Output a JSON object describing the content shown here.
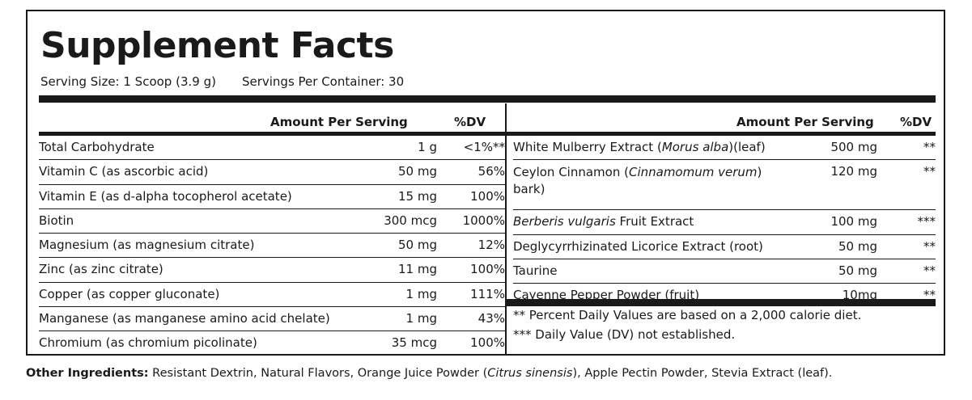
{
  "title": "Supplement Facts",
  "serving_size": "Serving Size: 1 Scoop (3.9 g)",
  "servings_per_container": "Servings Per Container: 30",
  "left_table": {
    "header_amount": "Amount Per Serving",
    "header_dv": "%DV",
    "rows": [
      {
        "name": "Total Carbohydrate",
        "amount": "1 g",
        "dv": "<1%**"
      },
      {
        "name": "Vitamin C (as ascorbic acid)",
        "amount": "50 mg",
        "dv": "56%"
      },
      {
        "name": "Vitamin E (as d-alpha tocopherol acetate)",
        "amount": "15 mg",
        "dv": "100%"
      },
      {
        "name": "Biotin",
        "amount": "300 mcg",
        "dv": "1000%"
      },
      {
        "name": "Magnesium (as magnesium citrate)",
        "amount": "50 mg",
        "dv": "12%"
      },
      {
        "name": "Zinc (as zinc citrate)",
        "amount": "11 mg",
        "dv": "100%"
      },
      {
        "name": "Copper (as copper gluconate)",
        "amount": "1 mg",
        "dv": "111%"
      },
      {
        "name": "Manganese (as manganese amino acid chelate)",
        "amount": "1 mg",
        "dv": "43%"
      },
      {
        "name": "Chromium (as chromium picolinate)",
        "amount": "35 mcg",
        "dv": "100%"
      }
    ]
  },
  "right_table": {
    "header_amount": "Amount Per Serving",
    "header_dv": "%DV",
    "rows": [
      {
        "name_pre": "White Mulberry Extract (",
        "name_italic": "Morus alba",
        "name_post": ")(leaf)",
        "amount": "500 mg",
        "dv": "**"
      },
      {
        "name_pre": "Ceylon Cinnamon (",
        "name_italic": "Cinnamomum verum",
        "name_post": ") bark)",
        "amount": "120 mg",
        "dv": "**"
      },
      {
        "name_pre": "",
        "name_italic": "Berberis vulgaris",
        "name_post": " Fruit Extract",
        "amount": "100 mg",
        "dv": "***"
      },
      {
        "name_pre": "Deglycyrrhizinated Licorice Extract (root)",
        "name_italic": "",
        "name_post": "",
        "amount": "50 mg",
        "dv": "**"
      },
      {
        "name_pre": "Taurine",
        "name_italic": "",
        "name_post": "",
        "amount": "50 mg",
        "dv": "**"
      },
      {
        "name_pre": "Cayenne Pepper Powder (fruit)",
        "name_italic": "",
        "name_post": "",
        "amount": "10mg",
        "dv": "**"
      }
    ],
    "footnotes": [
      "** Percent Daily Values are based on a 2,000 calorie diet.",
      "*** Daily Value (DV) not established."
    ]
  },
  "other_ingredients": {
    "label": "Other Ingredients:",
    "text_pre": " Resistant Dextrin, Natural Flavors, Orange Juice Powder (",
    "text_italic": "Citrus sinensis",
    "text_post": "), Apple Pectin Powder, Stevia Extract (leaf)."
  }
}
